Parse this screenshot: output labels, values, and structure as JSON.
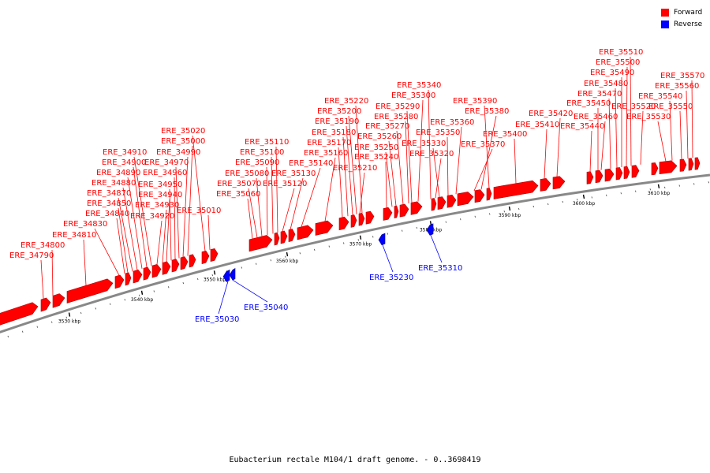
{
  "caption": "Eubacterium rectale M104/1 draft genome. - 0..3698419",
  "legend": [
    {
      "label": "Forward",
      "color": "#ff0000"
    },
    {
      "label": "Reverse",
      "color": "#0000ff"
    }
  ],
  "colors": {
    "forward": "#ff0000",
    "reverse": "#0000ff",
    "backbone": "#888888"
  },
  "axis": {
    "start_kbp": 3520,
    "end_kbp": 3620,
    "tick_labels": [
      "3530 kbp",
      "3540 kbp",
      "3550 kbp",
      "3560 kbp",
      "3570 kbp",
      "3580 kbp",
      "3590 kbp",
      "3600 kbp",
      "3610 kbp"
    ]
  },
  "forward_genes": [
    "ERE_34790",
    "ERE_34800",
    "ERE_34810",
    "ERE_34830",
    "ERE_34840",
    "ERE_34850",
    "ERE_34870",
    "ERE_34880",
    "ERE_34890",
    "ERE_34900",
    "ERE_34910",
    "ERE_34920",
    "ERE_34930",
    "ERE_34940",
    "ERE_34950",
    "ERE_34960",
    "ERE_34970",
    "ERE_34990",
    "ERE_35000",
    "ERE_35010",
    "ERE_35020",
    "ERE_35060",
    "ERE_35070",
    "ERE_35080",
    "ERE_35090",
    "ERE_35100",
    "ERE_35110",
    "ERE_35120",
    "ERE_35130",
    "ERE_35140",
    "ERE_35160",
    "ERE_35170",
    "ERE_35180",
    "ERE_35190",
    "ERE_35200",
    "ERE_35210",
    "ERE_35220",
    "ERE_35240",
    "ERE_35250",
    "ERE_35260",
    "ERE_35270",
    "ERE_35280",
    "ERE_35290",
    "ERE_35300",
    "ERE_35320",
    "ERE_35330",
    "ERE_35340",
    "ERE_35350",
    "ERE_35360",
    "ERE_35370",
    "ERE_35380",
    "ERE_35390",
    "ERE_35400",
    "ERE_35410",
    "ERE_35420",
    "ERE_35440",
    "ERE_35450",
    "ERE_35460",
    "ERE_35470",
    "ERE_35480",
    "ERE_35490",
    "ERE_35500",
    "ERE_35510",
    "ERE_35520",
    "ERE_35530",
    "ERE_35540",
    "ERE_35550",
    "ERE_35560",
    "ERE_35570"
  ],
  "reverse_genes": [
    "ERE_35030",
    "ERE_35040",
    "ERE_35230",
    "ERE_35310"
  ]
}
